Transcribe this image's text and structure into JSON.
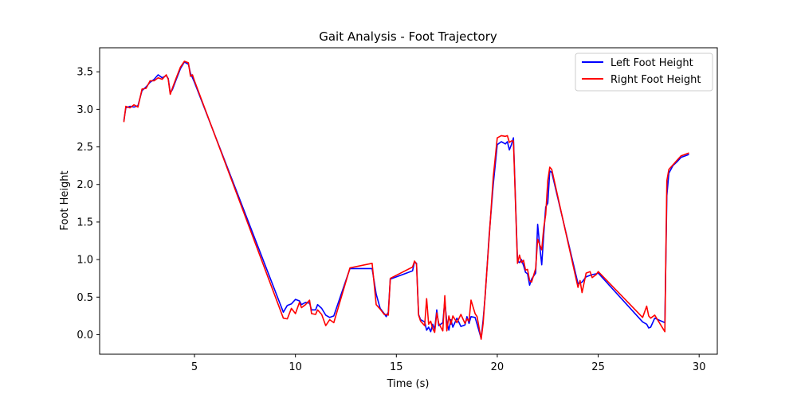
{
  "chart_data": {
    "type": "line",
    "title": "Gait Analysis - Foot Trajectory",
    "xlabel": "Time (s)",
    "ylabel": "Foot Height",
    "xlim": [
      0.3,
      30.9
    ],
    "ylim": [
      -0.26,
      3.82
    ],
    "xticks": [
      5,
      10,
      15,
      20,
      25,
      30
    ],
    "yticks": [
      0.0,
      0.5,
      1.0,
      1.5,
      2.0,
      2.5,
      3.0,
      3.5
    ],
    "grid": false,
    "legend_position": "top-right",
    "series": [
      {
        "name": "Left Foot Height",
        "color": "#0000ff",
        "points": [
          [
            1.5,
            2.85
          ],
          [
            1.6,
            3.02
          ],
          [
            1.8,
            3.04
          ],
          [
            2.0,
            3.03
          ],
          [
            2.2,
            3.05
          ],
          [
            2.4,
            3.25
          ],
          [
            2.6,
            3.3
          ],
          [
            2.8,
            3.36
          ],
          [
            3.0,
            3.4
          ],
          [
            3.2,
            3.46
          ],
          [
            3.4,
            3.42
          ],
          [
            3.6,
            3.45
          ],
          [
            3.7,
            3.41
          ],
          [
            3.8,
            3.22
          ],
          [
            3.9,
            3.26
          ],
          [
            4.1,
            3.4
          ],
          [
            4.3,
            3.54
          ],
          [
            4.5,
            3.63
          ],
          [
            4.7,
            3.6
          ],
          [
            4.8,
            3.48
          ],
          [
            4.9,
            3.42
          ],
          [
            5.0,
            3.36
          ],
          [
            9.4,
            0.3
          ],
          [
            9.6,
            0.39
          ],
          [
            9.8,
            0.41
          ],
          [
            10.0,
            0.47
          ],
          [
            10.2,
            0.45
          ],
          [
            10.3,
            0.4
          ],
          [
            10.5,
            0.43
          ],
          [
            10.7,
            0.42
          ],
          [
            10.8,
            0.33
          ],
          [
            11.0,
            0.33
          ],
          [
            11.1,
            0.4
          ],
          [
            11.3,
            0.35
          ],
          [
            11.5,
            0.26
          ],
          [
            11.7,
            0.23
          ],
          [
            11.9,
            0.25
          ],
          [
            12.7,
            0.88
          ],
          [
            13.8,
            0.88
          ],
          [
            14.0,
            0.54
          ],
          [
            14.2,
            0.35
          ],
          [
            14.4,
            0.28
          ],
          [
            14.5,
            0.24
          ],
          [
            14.6,
            0.3
          ],
          [
            14.7,
            0.74
          ],
          [
            15.8,
            0.85
          ],
          [
            15.9,
            0.97
          ],
          [
            16.0,
            0.95
          ],
          [
            16.1,
            0.27
          ],
          [
            16.2,
            0.2
          ],
          [
            16.4,
            0.17
          ],
          [
            16.5,
            0.06
          ],
          [
            16.6,
            0.1
          ],
          [
            16.7,
            0.04
          ],
          [
            16.8,
            0.14
          ],
          [
            16.9,
            0.07
          ],
          [
            17.0,
            0.33
          ],
          [
            17.1,
            0.12
          ],
          [
            17.3,
            0.16
          ],
          [
            17.4,
            0.45
          ],
          [
            17.5,
            0.17
          ],
          [
            17.6,
            0.06
          ],
          [
            17.7,
            0.2
          ],
          [
            17.8,
            0.1
          ],
          [
            18.0,
            0.22
          ],
          [
            18.2,
            0.11
          ],
          [
            18.4,
            0.13
          ],
          [
            18.5,
            0.24
          ],
          [
            18.6,
            0.15
          ],
          [
            18.7,
            0.24
          ],
          [
            18.9,
            0.23
          ],
          [
            19.0,
            0.14
          ],
          [
            19.2,
            -0.05
          ],
          [
            19.3,
            0.2
          ],
          [
            19.4,
            0.51
          ],
          [
            19.6,
            1.33
          ],
          [
            19.8,
            2.0
          ],
          [
            20.0,
            2.53
          ],
          [
            20.2,
            2.57
          ],
          [
            20.4,
            2.54
          ],
          [
            20.5,
            2.57
          ],
          [
            20.6,
            2.46
          ],
          [
            20.7,
            2.53
          ],
          [
            20.8,
            2.62
          ],
          [
            21.0,
            0.98
          ],
          [
            21.1,
            0.96
          ],
          [
            21.2,
            1.0
          ],
          [
            21.3,
            0.92
          ],
          [
            21.4,
            0.83
          ],
          [
            21.5,
            0.81
          ],
          [
            21.6,
            0.66
          ],
          [
            21.7,
            0.74
          ],
          [
            21.9,
            0.82
          ],
          [
            22.0,
            1.47
          ],
          [
            22.1,
            1.19
          ],
          [
            22.2,
            0.93
          ],
          [
            22.3,
            1.33
          ],
          [
            22.4,
            1.7
          ],
          [
            22.5,
            1.75
          ],
          [
            22.6,
            2.18
          ],
          [
            22.7,
            2.16
          ],
          [
            24.0,
            0.68
          ],
          [
            24.1,
            0.69
          ],
          [
            24.2,
            0.7
          ],
          [
            24.4,
            0.77
          ],
          [
            24.6,
            0.79
          ],
          [
            24.7,
            0.8
          ],
          [
            24.9,
            0.81
          ],
          [
            25.0,
            0.82
          ],
          [
            27.2,
            0.17
          ],
          [
            27.4,
            0.14
          ],
          [
            27.5,
            0.09
          ],
          [
            27.6,
            0.1
          ],
          [
            27.8,
            0.22
          ],
          [
            28.3,
            0.16
          ],
          [
            28.4,
            1.85
          ],
          [
            28.5,
            2.15
          ],
          [
            28.7,
            2.25
          ],
          [
            28.9,
            2.3
          ],
          [
            29.1,
            2.36
          ],
          [
            29.3,
            2.38
          ],
          [
            29.5,
            2.4
          ]
        ]
      },
      {
        "name": "Right Foot Height",
        "color": "#ff0000",
        "points": [
          [
            1.5,
            2.83
          ],
          [
            1.6,
            3.04
          ],
          [
            1.8,
            3.02
          ],
          [
            2.0,
            3.06
          ],
          [
            2.2,
            3.03
          ],
          [
            2.4,
            3.27
          ],
          [
            2.6,
            3.28
          ],
          [
            2.8,
            3.38
          ],
          [
            3.0,
            3.38
          ],
          [
            3.2,
            3.42
          ],
          [
            3.4,
            3.4
          ],
          [
            3.6,
            3.46
          ],
          [
            3.7,
            3.4
          ],
          [
            3.8,
            3.2
          ],
          [
            3.9,
            3.28
          ],
          [
            4.1,
            3.42
          ],
          [
            4.3,
            3.56
          ],
          [
            4.5,
            3.64
          ],
          [
            4.7,
            3.62
          ],
          [
            4.8,
            3.44
          ],
          [
            4.9,
            3.46
          ],
          [
            5.0,
            3.38
          ],
          [
            9.4,
            0.22
          ],
          [
            9.6,
            0.21
          ],
          [
            9.8,
            0.35
          ],
          [
            10.0,
            0.28
          ],
          [
            10.2,
            0.43
          ],
          [
            10.3,
            0.36
          ],
          [
            10.5,
            0.4
          ],
          [
            10.7,
            0.46
          ],
          [
            10.8,
            0.28
          ],
          [
            11.0,
            0.27
          ],
          [
            11.1,
            0.33
          ],
          [
            11.3,
            0.27
          ],
          [
            11.5,
            0.12
          ],
          [
            11.7,
            0.2
          ],
          [
            11.9,
            0.16
          ],
          [
            12.7,
            0.89
          ],
          [
            13.8,
            0.95
          ],
          [
            14.0,
            0.4
          ],
          [
            14.2,
            0.34
          ],
          [
            14.4,
            0.27
          ],
          [
            14.5,
            0.27
          ],
          [
            14.6,
            0.26
          ],
          [
            14.7,
            0.75
          ],
          [
            15.8,
            0.9
          ],
          [
            15.9,
            0.98
          ],
          [
            16.0,
            0.94
          ],
          [
            16.1,
            0.26
          ],
          [
            16.2,
            0.18
          ],
          [
            16.4,
            0.12
          ],
          [
            16.5,
            0.48
          ],
          [
            16.6,
            0.14
          ],
          [
            16.7,
            0.18
          ],
          [
            16.8,
            0.08
          ],
          [
            16.9,
            0.03
          ],
          [
            17.0,
            0.29
          ],
          [
            17.1,
            0.15
          ],
          [
            17.3,
            0.05
          ],
          [
            17.4,
            0.52
          ],
          [
            17.5,
            0.05
          ],
          [
            17.6,
            0.25
          ],
          [
            17.7,
            0.14
          ],
          [
            17.8,
            0.25
          ],
          [
            18.0,
            0.16
          ],
          [
            18.2,
            0.27
          ],
          [
            18.4,
            0.15
          ],
          [
            18.5,
            0.21
          ],
          [
            18.6,
            0.18
          ],
          [
            18.7,
            0.46
          ],
          [
            18.9,
            0.28
          ],
          [
            19.0,
            0.24
          ],
          [
            19.2,
            -0.06
          ],
          [
            19.3,
            0.15
          ],
          [
            19.4,
            0.52
          ],
          [
            19.6,
            1.3
          ],
          [
            19.8,
            2.1
          ],
          [
            20.0,
            2.62
          ],
          [
            20.2,
            2.65
          ],
          [
            20.4,
            2.64
          ],
          [
            20.5,
            2.65
          ],
          [
            20.6,
            2.56
          ],
          [
            20.7,
            2.58
          ],
          [
            20.8,
            2.58
          ],
          [
            21.0,
            0.95
          ],
          [
            21.1,
            1.06
          ],
          [
            21.2,
            0.96
          ],
          [
            21.3,
            0.99
          ],
          [
            21.4,
            0.86
          ],
          [
            21.5,
            0.87
          ],
          [
            21.6,
            0.72
          ],
          [
            21.7,
            0.7
          ],
          [
            21.9,
            0.88
          ],
          [
            22.0,
            1.27
          ],
          [
            22.1,
            1.2
          ],
          [
            22.2,
            1.13
          ],
          [
            22.3,
            1.42
          ],
          [
            22.4,
            1.6
          ],
          [
            22.5,
            2.05
          ],
          [
            22.6,
            2.23
          ],
          [
            22.7,
            2.2
          ],
          [
            24.0,
            0.63
          ],
          [
            24.1,
            0.72
          ],
          [
            24.2,
            0.56
          ],
          [
            24.4,
            0.82
          ],
          [
            24.6,
            0.84
          ],
          [
            24.7,
            0.76
          ],
          [
            24.9,
            0.8
          ],
          [
            25.0,
            0.84
          ],
          [
            27.2,
            0.23
          ],
          [
            27.4,
            0.38
          ],
          [
            27.5,
            0.25
          ],
          [
            27.6,
            0.22
          ],
          [
            27.8,
            0.26
          ],
          [
            28.3,
            0.04
          ],
          [
            28.4,
            2.05
          ],
          [
            28.5,
            2.2
          ],
          [
            28.7,
            2.26
          ],
          [
            28.9,
            2.32
          ],
          [
            29.1,
            2.38
          ],
          [
            29.3,
            2.4
          ],
          [
            29.5,
            2.42
          ]
        ]
      }
    ]
  }
}
